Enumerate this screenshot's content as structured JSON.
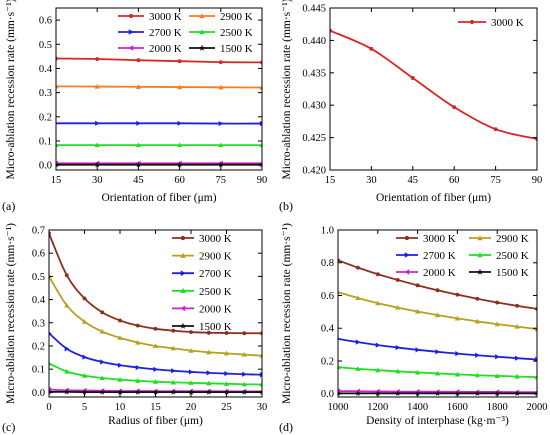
{
  "chart_data": [
    {
      "type": "line",
      "panel_label": "(a)",
      "xlabel": "Orientation of fiber (μm)",
      "ylabel": "Micro-ablation recession rate (mm·s⁻¹)",
      "xlim": [
        15,
        90
      ],
      "ylim": [
        -0.02,
        0.65
      ],
      "xticks": [
        15,
        30,
        45,
        60,
        75,
        90
      ],
      "yticks": [
        0.0,
        0.1,
        0.2,
        0.3,
        0.4,
        0.5,
        0.6
      ],
      "ytick_decimals": 1,
      "legend": {
        "placement": "top-right",
        "columns": 2
      },
      "series": [
        {
          "name": "3000 K",
          "color": "#d62728",
          "marker": "circle",
          "x": [
            15,
            30,
            45,
            60,
            75,
            90
          ],
          "values": [
            0.441,
            0.439,
            0.434,
            0.43,
            0.426,
            0.425
          ]
        },
        {
          "name": "2900 K",
          "color": "#f07f2a",
          "marker": "triangle-up",
          "x": [
            15,
            30,
            45,
            60,
            75,
            90
          ],
          "values": [
            0.326,
            0.325,
            0.324,
            0.323,
            0.322,
            0.321
          ]
        },
        {
          "name": "2700 K",
          "color": "#1f1fe0",
          "marker": "triangle-right",
          "x": [
            15,
            30,
            45,
            60,
            75,
            90
          ],
          "values": [
            0.173,
            0.173,
            0.173,
            0.173,
            0.172,
            0.172
          ]
        },
        {
          "name": "2500 K",
          "color": "#22dd22",
          "marker": "triangle-up",
          "x": [
            15,
            30,
            45,
            60,
            75,
            90
          ],
          "values": [
            0.083,
            0.083,
            0.083,
            0.083,
            0.083,
            0.083
          ]
        },
        {
          "name": "2000 K",
          "color": "#d020d0",
          "marker": "triangle-left",
          "x": [
            15,
            30,
            45,
            60,
            75,
            90
          ],
          "values": [
            0.008,
            0.008,
            0.008,
            0.008,
            0.008,
            0.008
          ]
        },
        {
          "name": "1500 K",
          "color": "#111111",
          "marker": "star",
          "x": [
            15,
            30,
            45,
            60,
            75,
            90
          ],
          "values": [
            0.002,
            0.002,
            0.002,
            0.002,
            0.002,
            0.002
          ]
        }
      ]
    },
    {
      "type": "line",
      "panel_label": "(b)",
      "xlabel": "Orientation of fiber (μm)",
      "ylabel": "Micro-ablation recession rate (mm·s⁻¹)",
      "xlim": [
        15,
        90
      ],
      "ylim": [
        0.42,
        0.445
      ],
      "xticks": [
        15,
        30,
        45,
        60,
        75,
        90
      ],
      "yticks": [
        0.42,
        0.425,
        0.43,
        0.435,
        0.44,
        0.445
      ],
      "ytick_decimals": 3,
      "legend": {
        "placement": "top-right",
        "columns": 1
      },
      "series": [
        {
          "name": "3000 K",
          "color": "#d62728",
          "marker": "circle",
          "x": [
            15,
            30,
            45,
            60,
            75,
            90
          ],
          "values": [
            0.4415,
            0.4387,
            0.4342,
            0.4297,
            0.4263,
            0.4248
          ]
        }
      ]
    },
    {
      "type": "line",
      "panel_label": "(c)",
      "xlabel": "Radius of fiber (μm)",
      "ylabel": "Micro-ablation recession rate (mm·s⁻¹)",
      "xlim": [
        0,
        30
      ],
      "ylim": [
        -0.02,
        0.7
      ],
      "xticks": [
        0,
        5,
        10,
        15,
        20,
        25,
        30
      ],
      "yticks": [
        0.0,
        0.1,
        0.2,
        0.3,
        0.4,
        0.5,
        0.6,
        0.7
      ],
      "ytick_decimals": 1,
      "legend": {
        "placement": "top-right",
        "columns": 1
      },
      "series": [
        {
          "name": "3000 K",
          "color": "#8b2f1f",
          "marker": "circle",
          "x": [
            0,
            2.5,
            5,
            7.5,
            10,
            12.5,
            15,
            17.5,
            20,
            22.5,
            25,
            27.5,
            30
          ],
          "values": [
            0.685,
            0.505,
            0.405,
            0.345,
            0.31,
            0.288,
            0.274,
            0.266,
            0.26,
            0.257,
            0.256,
            0.255,
            0.255
          ]
        },
        {
          "name": "2900 K",
          "color": "#b8a020",
          "marker": "triangle-up",
          "x": [
            0,
            2.5,
            5,
            7.5,
            10,
            12.5,
            15,
            17.5,
            20,
            22.5,
            25,
            27.5,
            30
          ],
          "values": [
            0.5,
            0.375,
            0.305,
            0.262,
            0.235,
            0.215,
            0.2,
            0.19,
            0.18,
            0.173,
            0.168,
            0.163,
            0.158
          ]
        },
        {
          "name": "2700 K",
          "color": "#1f1fe0",
          "marker": "triangle-right",
          "x": [
            0,
            2.5,
            5,
            7.5,
            10,
            12.5,
            15,
            17.5,
            20,
            22.5,
            25,
            27.5,
            30
          ],
          "values": [
            0.255,
            0.188,
            0.152,
            0.131,
            0.117,
            0.107,
            0.099,
            0.093,
            0.088,
            0.084,
            0.081,
            0.078,
            0.076
          ]
        },
        {
          "name": "2500 K",
          "color": "#22dd22",
          "marker": "triangle-up",
          "x": [
            0,
            2.5,
            5,
            7.5,
            10,
            12.5,
            15,
            17.5,
            20,
            22.5,
            25,
            27.5,
            30
          ],
          "values": [
            0.125,
            0.09,
            0.072,
            0.062,
            0.055,
            0.05,
            0.046,
            0.043,
            0.041,
            0.039,
            0.037,
            0.035,
            0.034
          ]
        },
        {
          "name": "2000 K",
          "color": "#d020d0",
          "marker": "triangle-left",
          "x": [
            0,
            2.5,
            5,
            7.5,
            10,
            12.5,
            15,
            17.5,
            20,
            22.5,
            25,
            27.5,
            30
          ],
          "values": [
            0.012,
            0.009,
            0.008,
            0.007,
            0.006,
            0.006,
            0.005,
            0.005,
            0.005,
            0.005,
            0.004,
            0.004,
            0.004
          ]
        },
        {
          "name": "1500 K",
          "color": "#111111",
          "marker": "star",
          "x": [
            0,
            2.5,
            5,
            7.5,
            10,
            12.5,
            15,
            17.5,
            20,
            22.5,
            25,
            27.5,
            30
          ],
          "values": [
            0.002,
            0.002,
            0.001,
            0.001,
            0.001,
            0.001,
            0.001,
            0.001,
            0.001,
            0.001,
            0.001,
            0.001,
            0.001
          ]
        }
      ]
    },
    {
      "type": "line",
      "panel_label": "(d)",
      "xlabel": "Density of interphase (kg·m⁻³)",
      "ylabel": "Micro-ablation recession rate (mm·s⁻¹)",
      "xlim": [
        1000,
        2000
      ],
      "ylim": [
        -0.02,
        1.0
      ],
      "xticks": [
        1000,
        1200,
        1400,
        1600,
        1800,
        2000
      ],
      "yticks": [
        0.0,
        0.2,
        0.4,
        0.6,
        0.8,
        1.0
      ],
      "ytick_decimals": 1,
      "legend": {
        "placement": "top-right",
        "columns": 2
      },
      "series": [
        {
          "name": "3000 K",
          "color": "#8b2f1f",
          "marker": "circle",
          "x": [
            1000,
            1100,
            1200,
            1300,
            1400,
            1500,
            1600,
            1700,
            1800,
            1900,
            2000
          ],
          "values": [
            0.815,
            0.77,
            0.73,
            0.695,
            0.662,
            0.632,
            0.605,
            0.58,
            0.557,
            0.537,
            0.518
          ]
        },
        {
          "name": "2900 K",
          "color": "#b8a020",
          "marker": "triangle-up",
          "x": [
            1000,
            1100,
            1200,
            1300,
            1400,
            1500,
            1600,
            1700,
            1800,
            1900,
            2000
          ],
          "values": [
            0.62,
            0.585,
            0.553,
            0.526,
            0.502,
            0.48,
            0.46,
            0.442,
            0.425,
            0.41,
            0.395
          ]
        },
        {
          "name": "2700 K",
          "color": "#1f1fe0",
          "marker": "triangle-right",
          "x": [
            1000,
            1100,
            1200,
            1300,
            1400,
            1500,
            1600,
            1700,
            1800,
            1900,
            2000
          ],
          "values": [
            0.335,
            0.315,
            0.297,
            0.282,
            0.268,
            0.256,
            0.245,
            0.235,
            0.226,
            0.217,
            0.209
          ]
        },
        {
          "name": "2500 K",
          "color": "#22dd22",
          "marker": "triangle-up",
          "x": [
            1000,
            1100,
            1200,
            1300,
            1400,
            1500,
            1600,
            1700,
            1800,
            1900,
            2000
          ],
          "values": [
            0.162,
            0.152,
            0.144,
            0.137,
            0.13,
            0.124,
            0.118,
            0.113,
            0.109,
            0.105,
            0.101
          ]
        },
        {
          "name": "2000 K",
          "color": "#d020d0",
          "marker": "triangle-left",
          "x": [
            1000,
            1100,
            1200,
            1300,
            1400,
            1500,
            1600,
            1700,
            1800,
            1900,
            2000
          ],
          "values": [
            0.016,
            0.015,
            0.014,
            0.013,
            0.013,
            0.012,
            0.012,
            0.011,
            0.011,
            0.01,
            0.01
          ]
        },
        {
          "name": "1500 K",
          "color": "#111111",
          "marker": "star",
          "x": [
            1000,
            1100,
            1200,
            1300,
            1400,
            1500,
            1600,
            1700,
            1800,
            1900,
            2000
          ],
          "values": [
            0.002,
            0.002,
            0.002,
            0.002,
            0.002,
            0.002,
            0.002,
            0.002,
            0.002,
            0.002,
            0.002
          ]
        }
      ]
    }
  ]
}
